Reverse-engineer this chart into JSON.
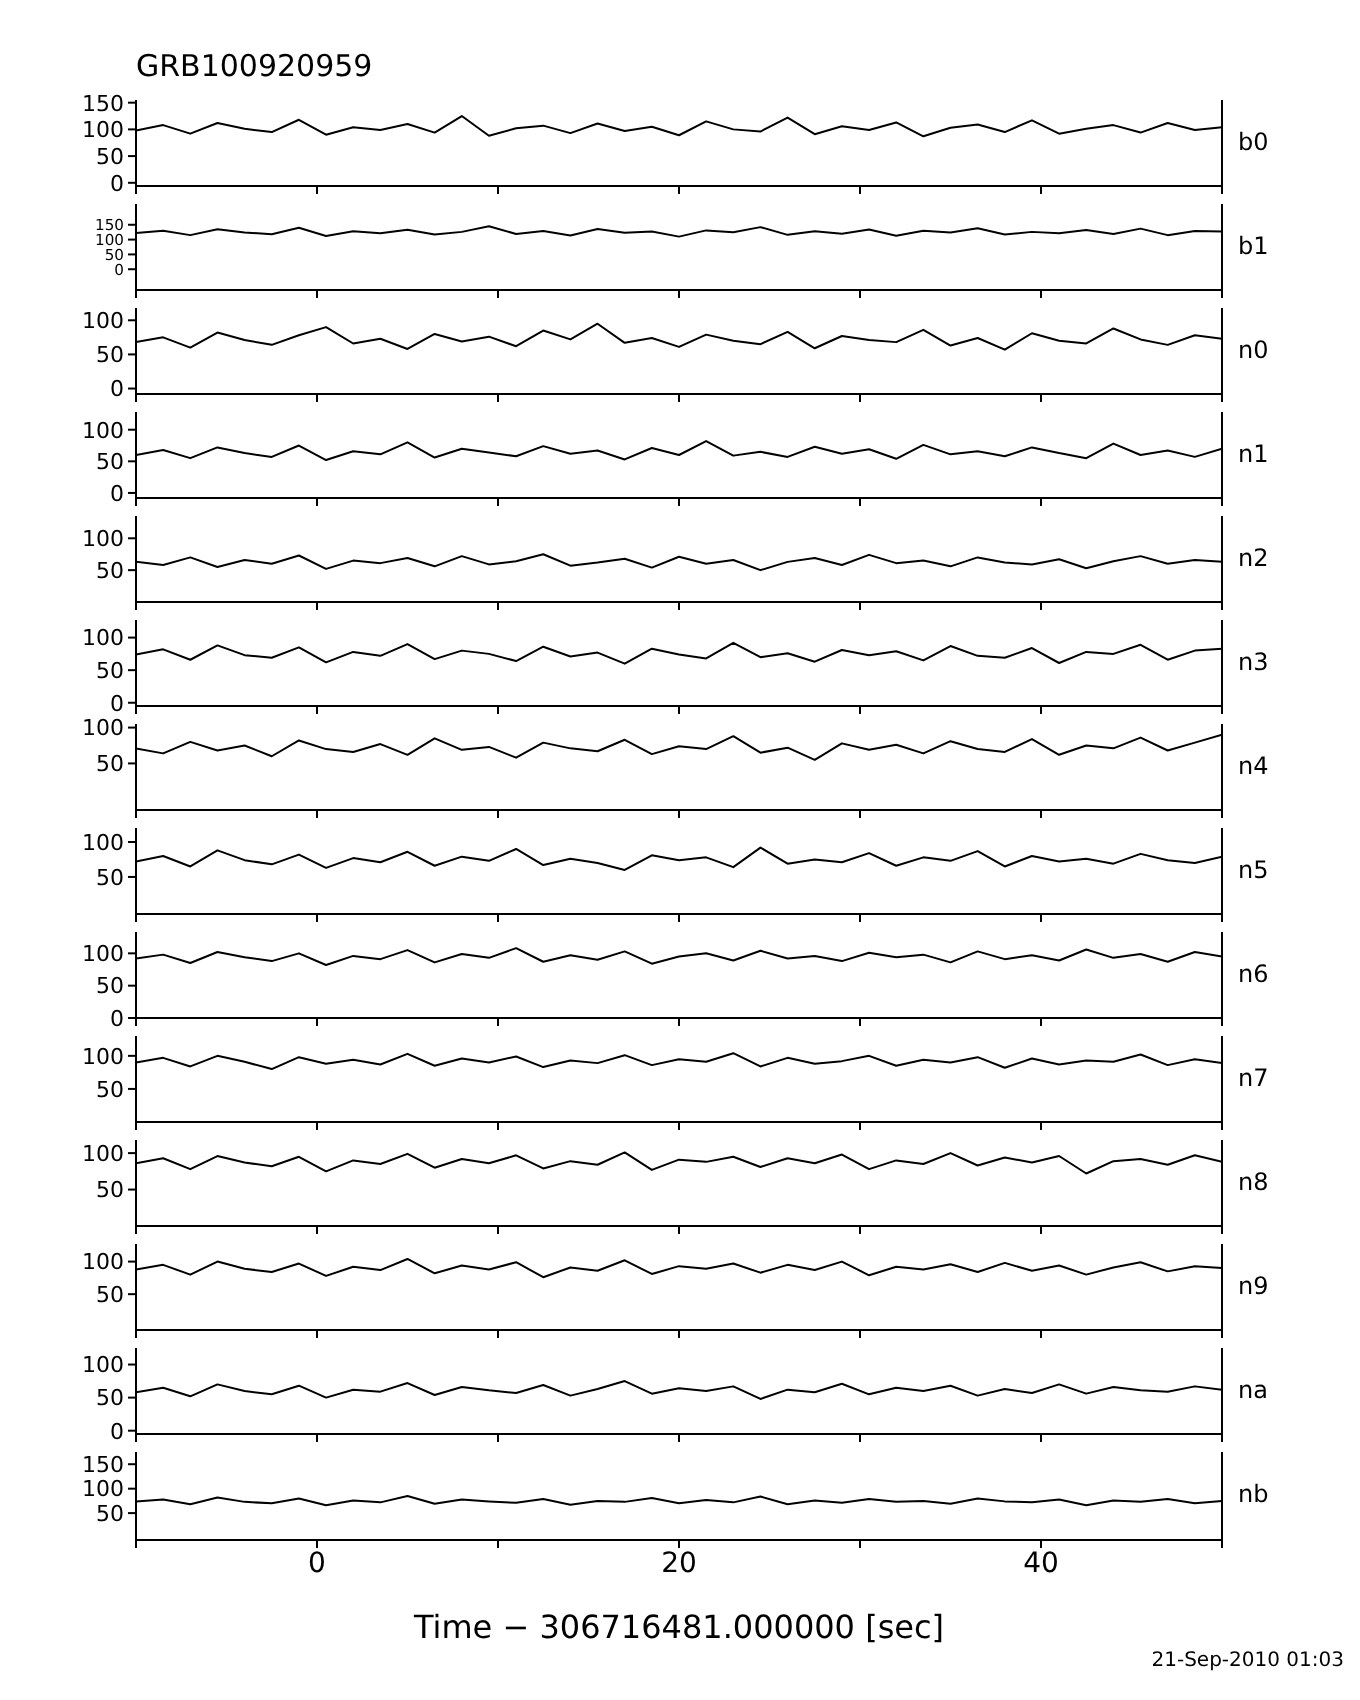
{
  "chart_data": [
    {
      "type": "line",
      "title": "GRB100920959",
      "x": [
        -10,
        -8.5,
        -7,
        -5.5,
        -4,
        -2.5,
        -1,
        0.5,
        2,
        3.5,
        5,
        6.5,
        8,
        9.5,
        11,
        12.5,
        14,
        15.5,
        17,
        18.5,
        20,
        21.5,
        23,
        24.5,
        26,
        27.5,
        29,
        30.5,
        32,
        33.5,
        35,
        36.5,
        38,
        39.5,
        41,
        42.5,
        44,
        45.5,
        47,
        48.5,
        50
      ],
      "xlim": [
        -10,
        50
      ],
      "xticks": [
        {
          "value": -10,
          "label": null
        },
        0,
        {
          "value": 10,
          "label": null
        },
        20,
        {
          "value": 30,
          "label": null
        },
        40,
        {
          "value": 50,
          "label": null
        }
      ],
      "ylim": [
        -6,
        155
      ],
      "yticks": [
        0,
        50,
        100,
        150
      ],
      "tick_labels": "y",
      "series": [
        {
          "name": "b0",
          "color": "#000000",
          "values": [
            98,
            108,
            92,
            112,
            101,
            95,
            118,
            90,
            104,
            99,
            110,
            94,
            125,
            88,
            102,
            107,
            93,
            111,
            97,
            105,
            89,
            115,
            100,
            96,
            122,
            91,
            106,
            99,
            113,
            87,
            103,
            109,
            95,
            117,
            92,
            101,
            108,
            94,
            112,
            99,
            104
          ]
        }
      ]
    },
    {
      "type": "line",
      "x": [
        -10,
        -8.5,
        -7,
        -5.5,
        -4,
        -2.5,
        -1,
        0.5,
        2,
        3.5,
        5,
        6.5,
        8,
        9.5,
        11,
        12.5,
        14,
        15.5,
        17,
        18.5,
        20,
        21.5,
        23,
        24.5,
        26,
        27.5,
        29,
        30.5,
        32,
        33.5,
        35,
        36.5,
        38,
        39.5,
        41,
        42.5,
        44,
        45.5,
        47,
        48.5,
        50
      ],
      "xlim": [
        -10,
        50
      ],
      "xticks": [
        {
          "value": -10,
          "label": null
        },
        0,
        {
          "value": 10,
          "label": null
        },
        20,
        {
          "value": 30,
          "label": null
        },
        40,
        {
          "value": 50,
          "label": null
        }
      ],
      "ylim": [
        -70,
        220
      ],
      "yticks": [
        0,
        50,
        100,
        150
      ],
      "tick_labels": "y",
      "series": [
        {
          "name": "b1",
          "color": "#000000",
          "values": [
            122,
            130,
            115,
            135,
            124,
            118,
            140,
            112,
            128,
            121,
            133,
            117,
            126,
            145,
            119,
            129,
            114,
            136,
            123,
            127,
            110,
            131,
            125,
            142,
            116,
            128,
            120,
            134,
            113,
            130,
            124,
            138,
            117,
            126,
            121,
            132,
            119,
            137,
            115,
            129,
            127
          ]
        }
      ]
    },
    {
      "type": "line",
      "x": [
        -10,
        -8.5,
        -7,
        -5.5,
        -4,
        -2.5,
        -1,
        0.5,
        2,
        3.5,
        5,
        6.5,
        8,
        9.5,
        11,
        12.5,
        14,
        15.5,
        17,
        18.5,
        20,
        21.5,
        23,
        24.5,
        26,
        27.5,
        29,
        30.5,
        32,
        33.5,
        35,
        36.5,
        38,
        39.5,
        41,
        42.5,
        44,
        45.5,
        47,
        48.5,
        50
      ],
      "xlim": [
        -10,
        50
      ],
      "xticks": [
        {
          "value": -10,
          "label": null
        },
        0,
        {
          "value": 10,
          "label": null
        },
        20,
        {
          "value": 30,
          "label": null
        },
        40,
        {
          "value": 50,
          "label": null
        }
      ],
      "ylim": [
        -8,
        118
      ],
      "yticks": [
        0,
        50,
        100
      ],
      "tick_labels": "y",
      "series": [
        {
          "name": "n0",
          "color": "#000000",
          "values": [
            68,
            75,
            60,
            82,
            71,
            64,
            78,
            90,
            66,
            73,
            58,
            80,
            69,
            76,
            62,
            85,
            72,
            95,
            67,
            74,
            61,
            79,
            70,
            65,
            83,
            59,
            77,
            71,
            68,
            86,
            63,
            74,
            57,
            81,
            70,
            66,
            88,
            72,
            64,
            78,
            73
          ]
        }
      ]
    },
    {
      "type": "line",
      "x": [
        -10,
        -8.5,
        -7,
        -5.5,
        -4,
        -2.5,
        -1,
        0.5,
        2,
        3.5,
        5,
        6.5,
        8,
        9.5,
        11,
        12.5,
        14,
        15.5,
        17,
        18.5,
        20,
        21.5,
        23,
        24.5,
        26,
        27.5,
        29,
        30.5,
        32,
        33.5,
        35,
        36.5,
        38,
        39.5,
        41,
        42.5,
        44,
        45.5,
        47,
        48.5,
        50
      ],
      "xlim": [
        -10,
        50
      ],
      "xticks": [
        {
          "value": -10,
          "label": null
        },
        0,
        {
          "value": 10,
          "label": null
        },
        20,
        {
          "value": 30,
          "label": null
        },
        40,
        {
          "value": 50,
          "label": null
        }
      ],
      "ylim": [
        -8,
        128
      ],
      "yticks": [
        0,
        50,
        100
      ],
      "tick_labels": "y",
      "series": [
        {
          "name": "n1",
          "color": "#000000",
          "values": [
            60,
            68,
            55,
            72,
            63,
            57,
            75,
            52,
            66,
            61,
            80,
            56,
            70,
            64,
            58,
            74,
            62,
            67,
            53,
            71,
            60,
            82,
            59,
            65,
            57,
            73,
            62,
            69,
            54,
            76,
            61,
            66,
            58,
            72,
            63,
            55,
            78,
            60,
            67,
            57,
            70
          ]
        }
      ]
    },
    {
      "type": "line",
      "x": [
        -10,
        -8.5,
        -7,
        -5.5,
        -4,
        -2.5,
        -1,
        0.5,
        2,
        3.5,
        5,
        6.5,
        8,
        9.5,
        11,
        12.5,
        14,
        15.5,
        17,
        18.5,
        20,
        21.5,
        23,
        24.5,
        26,
        27.5,
        29,
        30.5,
        32,
        33.5,
        35,
        36.5,
        38,
        39.5,
        41,
        42.5,
        44,
        45.5,
        47,
        48.5,
        50
      ],
      "xlim": [
        -10,
        50
      ],
      "xticks": [
        {
          "value": -10,
          "label": null
        },
        0,
        {
          "value": 10,
          "label": null
        },
        20,
        {
          "value": 30,
          "label": null
        },
        40,
        {
          "value": 50,
          "label": null
        }
      ],
      "ylim": [
        0,
        135
      ],
      "yticks": [
        50,
        100
      ],
      "tick_labels": "y",
      "series": [
        {
          "name": "n2",
          "color": "#000000",
          "values": [
            63,
            58,
            70,
            55,
            66,
            60,
            73,
            52,
            65,
            61,
            69,
            56,
            72,
            59,
            64,
            75,
            57,
            62,
            68,
            54,
            71,
            60,
            66,
            50,
            63,
            69,
            58,
            74,
            61,
            65,
            56,
            70,
            62,
            59,
            67,
            53,
            64,
            72,
            60,
            66,
            63
          ]
        }
      ]
    },
    {
      "type": "line",
      "x": [
        -10,
        -8.5,
        -7,
        -5.5,
        -4,
        -2.5,
        -1,
        0.5,
        2,
        3.5,
        5,
        6.5,
        8,
        9.5,
        11,
        12.5,
        14,
        15.5,
        17,
        18.5,
        20,
        21.5,
        23,
        24.5,
        26,
        27.5,
        29,
        30.5,
        32,
        33.5,
        35,
        36.5,
        38,
        39.5,
        41,
        42.5,
        44,
        45.5,
        47,
        48.5,
        50
      ],
      "xlim": [
        -10,
        50
      ],
      "xticks": [
        {
          "value": -10,
          "label": null
        },
        0,
        {
          "value": 10,
          "label": null
        },
        20,
        {
          "value": 30,
          "label": null
        },
        40,
        {
          "value": 50,
          "label": null
        }
      ],
      "ylim": [
        -5,
        127
      ],
      "yticks": [
        0,
        50,
        100
      ],
      "tick_labels": "y",
      "series": [
        {
          "name": "n3",
          "color": "#000000",
          "values": [
            74,
            82,
            66,
            88,
            73,
            69,
            85,
            62,
            78,
            72,
            90,
            67,
            80,
            75,
            64,
            86,
            71,
            77,
            60,
            83,
            74,
            68,
            92,
            70,
            76,
            63,
            81,
            73,
            79,
            65,
            87,
            72,
            69,
            84,
            61,
            78,
            75,
            89,
            66,
            80,
            83
          ]
        }
      ]
    },
    {
      "type": "line",
      "x": [
        -10,
        -8.5,
        -7,
        -5.5,
        -4,
        -2.5,
        -1,
        0.5,
        2,
        3.5,
        5,
        6.5,
        8,
        9.5,
        11,
        12.5,
        14,
        15.5,
        17,
        18.5,
        20,
        21.5,
        23,
        24.5,
        26,
        27.5,
        29,
        30.5,
        32,
        33.5,
        35,
        36.5,
        38,
        39.5,
        41,
        42.5,
        44,
        45.5,
        47,
        48.5,
        50
      ],
      "xlim": [
        -10,
        50
      ],
      "xticks": [
        {
          "value": -10,
          "label": null
        },
        0,
        {
          "value": 10,
          "label": null
        },
        20,
        {
          "value": 30,
          "label": null
        },
        40,
        {
          "value": 50,
          "label": null
        }
      ],
      "ylim": [
        -15,
        105
      ],
      "yticks": [
        50,
        100
      ],
      "tick_labels": "y",
      "series": [
        {
          "name": "n4",
          "color": "#000000",
          "values": [
            71,
            64,
            80,
            68,
            75,
            60,
            82,
            70,
            66,
            77,
            62,
            85,
            69,
            73,
            58,
            79,
            71,
            67,
            83,
            63,
            74,
            70,
            88,
            65,
            72,
            55,
            78,
            69,
            76,
            64,
            81,
            70,
            66,
            84,
            62,
            75,
            71,
            86,
            68,
            79,
            90
          ]
        }
      ]
    },
    {
      "type": "line",
      "x": [
        -10,
        -8.5,
        -7,
        -5.5,
        -4,
        -2.5,
        -1,
        0.5,
        2,
        3.5,
        5,
        6.5,
        8,
        9.5,
        11,
        12.5,
        14,
        15.5,
        17,
        18.5,
        20,
        21.5,
        23,
        24.5,
        26,
        27.5,
        29,
        30.5,
        32,
        33.5,
        35,
        36.5,
        38,
        39.5,
        41,
        42.5,
        44,
        45.5,
        47,
        48.5,
        50
      ],
      "xlim": [
        -10,
        50
      ],
      "xticks": [
        {
          "value": -10,
          "label": null
        },
        0,
        {
          "value": 10,
          "label": null
        },
        20,
        {
          "value": 30,
          "label": null
        },
        40,
        {
          "value": 50,
          "label": null
        }
      ],
      "ylim": [
        -3,
        120
      ],
      "yticks": [
        50,
        100
      ],
      "tick_labels": "y",
      "series": [
        {
          "name": "n5",
          "color": "#000000",
          "values": [
            72,
            80,
            65,
            88,
            74,
            68,
            82,
            63,
            77,
            71,
            86,
            66,
            79,
            73,
            90,
            67,
            76,
            70,
            60,
            81,
            74,
            78,
            64,
            92,
            69,
            75,
            71,
            84,
            66,
            78,
            73,
            87,
            65,
            80,
            72,
            76,
            69,
            83,
            74,
            70,
            79
          ]
        }
      ]
    },
    {
      "type": "line",
      "x": [
        -10,
        -8.5,
        -7,
        -5.5,
        -4,
        -2.5,
        -1,
        0.5,
        2,
        3.5,
        5,
        6.5,
        8,
        9.5,
        11,
        12.5,
        14,
        15.5,
        17,
        18.5,
        20,
        21.5,
        23,
        24.5,
        26,
        27.5,
        29,
        30.5,
        32,
        33.5,
        35,
        36.5,
        38,
        39.5,
        41,
        42.5,
        44,
        45.5,
        47,
        48.5,
        50
      ],
      "xlim": [
        -10,
        50
      ],
      "xticks": [
        {
          "value": -10,
          "label": null
        },
        0,
        {
          "value": 10,
          "label": null
        },
        20,
        {
          "value": 30,
          "label": null
        },
        40,
        {
          "value": 50,
          "label": null
        }
      ],
      "ylim": [
        0,
        133
      ],
      "yticks": [
        0,
        50,
        100
      ],
      "tick_labels": "y",
      "series": [
        {
          "name": "n6",
          "color": "#000000",
          "values": [
            92,
            98,
            85,
            102,
            94,
            88,
            100,
            82,
            96,
            91,
            105,
            86,
            99,
            93,
            108,
            87,
            97,
            90,
            103,
            84,
            95,
            100,
            89,
            104,
            92,
            96,
            88,
            101,
            94,
            98,
            86,
            103,
            91,
            97,
            89,
            106,
            93,
            99,
            87,
            102,
            95
          ]
        }
      ]
    },
    {
      "type": "line",
      "x": [
        -10,
        -8.5,
        -7,
        -5.5,
        -4,
        -2.5,
        -1,
        0.5,
        2,
        3.5,
        5,
        6.5,
        8,
        9.5,
        11,
        12.5,
        14,
        15.5,
        17,
        18.5,
        20,
        21.5,
        23,
        24.5,
        26,
        27.5,
        29,
        30.5,
        32,
        33.5,
        35,
        36.5,
        38,
        39.5,
        41,
        42.5,
        44,
        45.5,
        47,
        48.5,
        50
      ],
      "xlim": [
        -10,
        50
      ],
      "xticks": [
        {
          "value": -10,
          "label": null
        },
        0,
        {
          "value": 10,
          "label": null
        },
        20,
        {
          "value": 30,
          "label": null
        },
        40,
        {
          "value": 50,
          "label": null
        }
      ],
      "ylim": [
        0,
        130
      ],
      "yticks": [
        50,
        100
      ],
      "tick_labels": "y",
      "series": [
        {
          "name": "n7",
          "color": "#000000",
          "values": [
            90,
            97,
            84,
            100,
            91,
            80,
            98,
            88,
            94,
            87,
            103,
            85,
            96,
            90,
            99,
            83,
            93,
            89,
            101,
            86,
            95,
            91,
            104,
            84,
            97,
            88,
            92,
            100,
            85,
            94,
            90,
            98,
            82,
            96,
            87,
            93,
            91,
            102,
            86,
            95,
            89
          ]
        }
      ]
    },
    {
      "type": "line",
      "x": [
        -10,
        -8.5,
        -7,
        -5.5,
        -4,
        -2.5,
        -1,
        0.5,
        2,
        3.5,
        5,
        6.5,
        8,
        9.5,
        11,
        12.5,
        14,
        15.5,
        17,
        18.5,
        20,
        21.5,
        23,
        24.5,
        26,
        27.5,
        29,
        30.5,
        32,
        33.5,
        35,
        36.5,
        38,
        39.5,
        41,
        42.5,
        44,
        45.5,
        47,
        48.5,
        50
      ],
      "xlim": [
        -10,
        50
      ],
      "xticks": [
        {
          "value": -10,
          "label": null
        },
        0,
        {
          "value": 10,
          "label": null
        },
        20,
        {
          "value": 30,
          "label": null
        },
        40,
        {
          "value": 50,
          "label": null
        }
      ],
      "ylim": [
        0,
        118
      ],
      "yticks": [
        50,
        100
      ],
      "tick_labels": "y",
      "series": [
        {
          "name": "n8",
          "color": "#000000",
          "values": [
            86,
            93,
            78,
            96,
            87,
            82,
            95,
            75,
            90,
            85,
            99,
            80,
            92,
            86,
            97,
            79,
            89,
            84,
            101,
            77,
            91,
            88,
            95,
            81,
            93,
            86,
            98,
            78,
            90,
            85,
            100,
            83,
            94,
            87,
            96,
            72,
            89,
            92,
            84,
            97,
            88
          ]
        }
      ]
    },
    {
      "type": "line",
      "x": [
        -10,
        -8.5,
        -7,
        -5.5,
        -4,
        -2.5,
        -1,
        0.5,
        2,
        3.5,
        5,
        6.5,
        8,
        9.5,
        11,
        12.5,
        14,
        15.5,
        17,
        18.5,
        20,
        21.5,
        23,
        24.5,
        26,
        27.5,
        29,
        30.5,
        32,
        33.5,
        35,
        36.5,
        38,
        39.5,
        41,
        42.5,
        44,
        45.5,
        47,
        48.5,
        50
      ],
      "xlim": [
        -10,
        50
      ],
      "xticks": [
        {
          "value": -10,
          "label": null
        },
        0,
        {
          "value": 10,
          "label": null
        },
        20,
        {
          "value": 30,
          "label": null
        },
        40,
        {
          "value": 50,
          "label": null
        }
      ],
      "ylim": [
        -5,
        127
      ],
      "yticks": [
        50,
        100
      ],
      "tick_labels": "y",
      "series": [
        {
          "name": "n9",
          "color": "#000000",
          "values": [
            88,
            95,
            80,
            100,
            89,
            84,
            97,
            78,
            92,
            87,
            104,
            82,
            94,
            88,
            99,
            76,
            91,
            86,
            102,
            81,
            93,
            89,
            97,
            83,
            95,
            87,
            100,
            79,
            92,
            88,
            96,
            84,
            98,
            86,
            94,
            80,
            91,
            99,
            85,
            93,
            90
          ]
        }
      ]
    },
    {
      "type": "line",
      "x": [
        -10,
        -8.5,
        -7,
        -5.5,
        -4,
        -2.5,
        -1,
        0.5,
        2,
        3.5,
        5,
        6.5,
        8,
        9.5,
        11,
        12.5,
        14,
        15.5,
        17,
        18.5,
        20,
        21.5,
        23,
        24.5,
        26,
        27.5,
        29,
        30.5,
        32,
        33.5,
        35,
        36.5,
        38,
        39.5,
        41,
        42.5,
        44,
        45.5,
        47,
        48.5,
        50
      ],
      "xlim": [
        -10,
        50
      ],
      "xticks": [
        {
          "value": -10,
          "label": null
        },
        0,
        {
          "value": 10,
          "label": null
        },
        20,
        {
          "value": 30,
          "label": null
        },
        40,
        {
          "value": 50,
          "label": null
        }
      ],
      "ylim": [
        -5,
        125
      ],
      "yticks": [
        0,
        50,
        100
      ],
      "tick_labels": "y",
      "series": [
        {
          "name": "na",
          "color": "#000000",
          "values": [
            58,
            65,
            52,
            70,
            60,
            55,
            68,
            50,
            62,
            59,
            72,
            54,
            66,
            61,
            57,
            69,
            53,
            63,
            75,
            56,
            64,
            60,
            67,
            48,
            62,
            58,
            71,
            55,
            65,
            60,
            68,
            53,
            63,
            57,
            70,
            56,
            66,
            61,
            59,
            67,
            62
          ]
        }
      ]
    },
    {
      "type": "line",
      "xlabel": "Time − 306716481.000000 [sec]",
      "annotations": [
        "21-Sep-2010 01:03"
      ],
      "x": [
        -10,
        -8.5,
        -7,
        -5.5,
        -4,
        -2.5,
        -1,
        0.5,
        2,
        3.5,
        5,
        6.5,
        8,
        9.5,
        11,
        12.5,
        14,
        15.5,
        17,
        18.5,
        20,
        21.5,
        23,
        24.5,
        26,
        27.5,
        29,
        30.5,
        32,
        33.5,
        35,
        36.5,
        38,
        39.5,
        41,
        42.5,
        44,
        45.5,
        47,
        48.5,
        50
      ],
      "xlim": [
        -10,
        50
      ],
      "xticks": [
        {
          "value": -10,
          "label": null
        },
        0,
        {
          "value": 10,
          "label": null
        },
        20,
        {
          "value": 30,
          "label": null
        },
        40,
        {
          "value": 50,
          "label": null
        }
      ],
      "ylim": [
        -5,
        175
      ],
      "yticks": [
        50,
        100,
        150
      ],
      "series": [
        {
          "name": "nb",
          "color": "#000000",
          "values": [
            74,
            78,
            68,
            82,
            73,
            70,
            80,
            66,
            76,
            72,
            85,
            69,
            78,
            74,
            71,
            79,
            67,
            75,
            73,
            81,
            70,
            77,
            72,
            84,
            68,
            76,
            71,
            79,
            73,
            75,
            69,
            80,
            74,
            72,
            78,
            66,
            76,
            73,
            79,
            70,
            75
          ]
        }
      ]
    }
  ]
}
